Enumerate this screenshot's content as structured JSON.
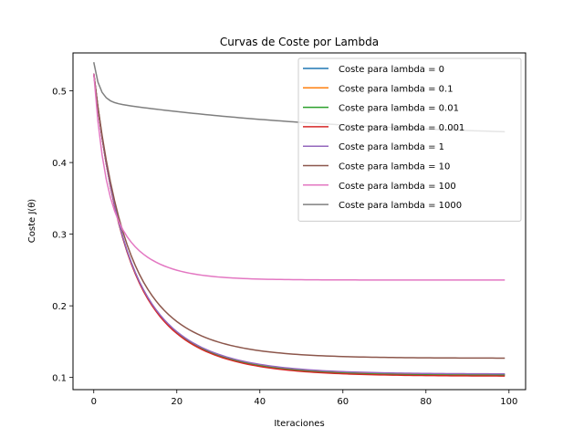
{
  "chart_data": {
    "type": "line",
    "title": "Curvas de Coste por Lambda",
    "xlabel": "Iteraciones",
    "ylabel": "Coste J(θ)",
    "xlim": [
      -5,
      104
    ],
    "ylim": [
      0.083,
      0.553
    ],
    "x_ticks": [
      0,
      20,
      40,
      60,
      80,
      100
    ],
    "y_ticks": [
      0.1,
      0.2,
      0.3,
      0.4,
      0.5
    ],
    "grid": false,
    "legend_position": "top-right",
    "iterations": 100,
    "series": [
      {
        "name": "Coste para lambda = 0",
        "color": "#1f77b4",
        "curve": {
          "start": 0.524,
          "end": 0.104,
          "tau": 14.5,
          "pivot": 0.84,
          "min": 0.085
        }
      },
      {
        "name": "Coste para lambda = 0.1",
        "color": "#ff7f0e",
        "curve": {
          "start": 0.524,
          "end": 0.104,
          "tau": 14.5,
          "pivot": 0.84,
          "min": 0.085
        }
      },
      {
        "name": "Coste para lambda = 0.01",
        "color": "#2ca02c",
        "curve": {
          "start": 0.524,
          "end": 0.103,
          "tau": 14.5,
          "pivot": 0.84,
          "min": 0.085
        }
      },
      {
        "name": "Coste para lambda = 0.001",
        "color": "#d62728",
        "curve": {
          "start": 0.524,
          "end": 0.102,
          "tau": 14.5,
          "pivot": 0.84,
          "min": 0.084
        }
      },
      {
        "name": "Coste para lambda = 1",
        "color": "#9467bd",
        "curve": {
          "start": 0.524,
          "end": 0.105,
          "tau": 14.5,
          "pivot": 0.84,
          "min": 0.087
        }
      },
      {
        "name": "Coste para lambda = 10",
        "color": "#8c564b",
        "curve": {
          "start": 0.524,
          "end": 0.127,
          "tau": 13.5,
          "pivot": 0.84,
          "min": 0.114
        }
      },
      {
        "name": "Coste para lambda = 100",
        "color": "#e377c2",
        "curve": {
          "start": 0.524,
          "end": 0.236,
          "tau": 8.5,
          "pivot": 0.65,
          "min": 0.235
        }
      },
      {
        "name": "Coste para lambda = 1000",
        "color": "#7f7f7f",
        "curve": {
          "start": 0.54,
          "end": 0.443,
          "tau": 60,
          "pivot": 0.5,
          "min": 0.43
        }
      }
    ]
  }
}
